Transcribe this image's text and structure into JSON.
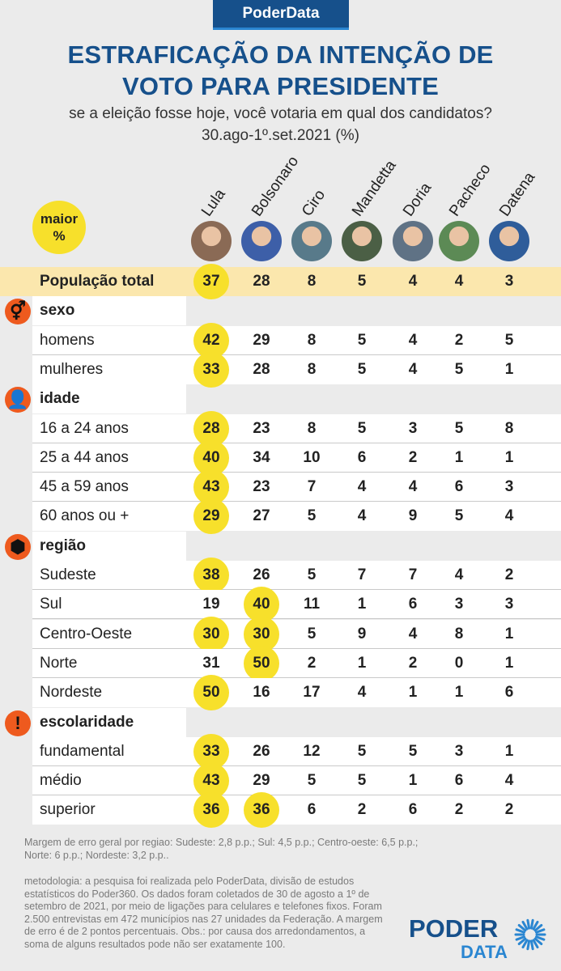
{
  "header": {
    "brand": "PoderData",
    "title_line1": "ESTRAFICAÇÃO DA INTENÇÃO DE",
    "title_line2": "VOTO PARA PRESIDENTE",
    "subtitle": "se a eleição fosse hoje, você votaria em qual dos candidatos?",
    "date": "30.ago-1º.set.2021 (%)"
  },
  "legend": {
    "line1": "maior",
    "line2": "%",
    "color": "#f7e02b"
  },
  "colors": {
    "brand_blue": "#16508b",
    "accent_orange": "#ee5a1e",
    "highlight_yellow": "#f7e02b",
    "total_row": "#fbe7ad"
  },
  "candidates": [
    {
      "name": "Lula",
      "photo_color": "#8a6a55"
    },
    {
      "name": "Bolsonaro",
      "photo_color": "#3d5fa8"
    },
    {
      "name": "Ciro",
      "photo_color": "#587a8a"
    },
    {
      "name": "Mandetta",
      "photo_color": "#4b5f45"
    },
    {
      "name": "Doria",
      "photo_color": "#5f7285"
    },
    {
      "name": "Pacheco",
      "photo_color": "#5c8a55"
    },
    {
      "name": "Datena",
      "photo_color": "#2f5d9a"
    }
  ],
  "chart_data": {
    "type": "table",
    "columns": [
      "Lula",
      "Bolsonaro",
      "Ciro",
      "Mandetta",
      "Doria",
      "Pacheco",
      "Datena"
    ],
    "total": {
      "label": "População total",
      "values": [
        37,
        28,
        8,
        5,
        4,
        4,
        3
      ],
      "highlight": [
        0
      ]
    },
    "groups": [
      {
        "name": "sexo",
        "icon": "gender-icon",
        "glyph": "⚥",
        "rows": [
          {
            "label": "homens",
            "values": [
              42,
              29,
              8,
              5,
              4,
              2,
              5
            ],
            "highlight": [
              0
            ]
          },
          {
            "label": "mulheres",
            "values": [
              33,
              28,
              8,
              5,
              4,
              5,
              1
            ],
            "highlight": [
              0
            ]
          }
        ]
      },
      {
        "name": "idade",
        "icon": "person-icon",
        "glyph": "👤",
        "rows": [
          {
            "label": "16 a 24 anos",
            "values": [
              28,
              23,
              8,
              5,
              3,
              5,
              8
            ],
            "highlight": [
              0
            ]
          },
          {
            "label": "25 a 44 anos",
            "values": [
              40,
              34,
              10,
              6,
              2,
              1,
              1
            ],
            "highlight": [
              0
            ]
          },
          {
            "label": "45 a 59 anos",
            "values": [
              43,
              23,
              7,
              4,
              4,
              6,
              3
            ],
            "highlight": [
              0
            ]
          },
          {
            "label": "60 anos ou +",
            "values": [
              29,
              27,
              5,
              4,
              9,
              5,
              4
            ],
            "highlight": [
              0
            ]
          }
        ]
      },
      {
        "name": "região",
        "icon": "brazil-map-icon",
        "glyph": "⬢",
        "rows": [
          {
            "label": "Sudeste",
            "values": [
              38,
              26,
              5,
              7,
              7,
              4,
              2
            ],
            "highlight": [
              0
            ]
          },
          {
            "label": "Sul",
            "values": [
              19,
              40,
              11,
              1,
              6,
              3,
              3
            ],
            "highlight": [
              1
            ]
          },
          {
            "label": "Centro-Oeste",
            "values": [
              30,
              30,
              5,
              9,
              4,
              8,
              1
            ],
            "highlight": [
              0,
              1
            ]
          },
          {
            "label": "Norte",
            "values": [
              31,
              50,
              2,
              1,
              2,
              0,
              1
            ],
            "highlight": [
              1
            ]
          },
          {
            "label": "Nordeste",
            "values": [
              50,
              16,
              17,
              4,
              1,
              1,
              6
            ],
            "highlight": [
              0
            ]
          }
        ]
      },
      {
        "name": "escolaridade",
        "icon": "exclamation-icon",
        "glyph": "!",
        "rows": [
          {
            "label": "fundamental",
            "values": [
              33,
              26,
              12,
              5,
              5,
              3,
              1
            ],
            "highlight": [
              0
            ]
          },
          {
            "label": "médio",
            "values": [
              43,
              29,
              5,
              5,
              1,
              6,
              4
            ],
            "highlight": [
              0
            ]
          },
          {
            "label": "superior",
            "values": [
              36,
              36,
              6,
              2,
              6,
              2,
              2
            ],
            "highlight": [
              0,
              1
            ]
          }
        ]
      }
    ]
  },
  "notes": {
    "margin_line1": "Margem de erro geral por regiao: Sudeste: 2,8 p.p.; Sul: 4,5 p.p.; Centro-oeste: 6,5 p.p.;",
    "margin_line2": "Norte: 6 p.p.; Nordeste: 3,2 p.p..",
    "method_lines": [
      "metodologia: a pesquisa foi realizada pelo PoderData, divisão de estudos",
      "estatísticos do Poder360. Os dados foram coletados de 30 de agosto a 1º de",
      "setembro de 2021, por meio de ligações para celulares e telefones fixos. Foram",
      "2.500 entrevistas em 472 municípios nas 27 unidades da Federação. A margem",
      "de erro é de 2 pontos percentuais. Obs.: por causa dos arredondamentos, a",
      "soma de alguns resultados pode não ser exatamente 100."
    ]
  },
  "logo": {
    "line1": "PODER",
    "line2": "DATA"
  }
}
